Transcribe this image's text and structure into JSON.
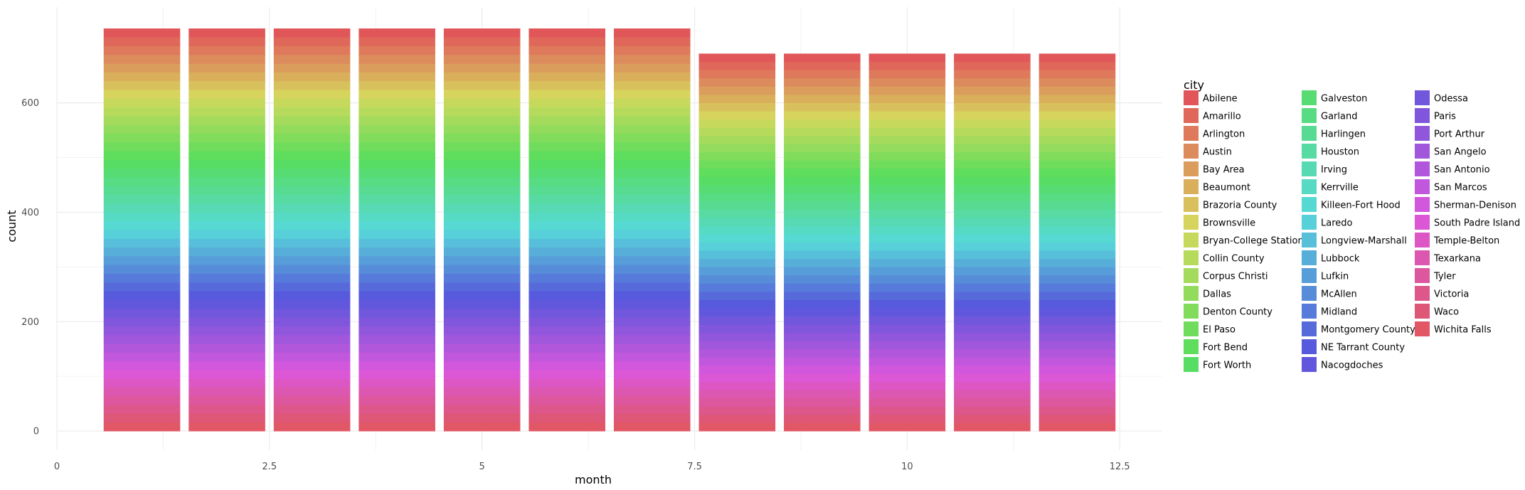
{
  "chart_data": {
    "type": "bar",
    "stacked": true,
    "xlabel": "month",
    "ylabel": "count",
    "xlim": [
      0,
      13
    ],
    "ylim": [
      -35,
      775
    ],
    "x_ticks": [
      0,
      2.5,
      5,
      7.5,
      10,
      12.5
    ],
    "x_tick_labels": [
      "0",
      "2.5",
      "5",
      "7.5",
      "10",
      "12.5"
    ],
    "y_ticks": [
      0,
      200,
      400,
      600
    ],
    "y_tick_labels": [
      "0",
      "200",
      "400",
      "600"
    ],
    "grid": true,
    "legend_title": "city",
    "legend_position": "right",
    "x": [
      1,
      2,
      3,
      4,
      5,
      6,
      7,
      8,
      9,
      10,
      11,
      12
    ],
    "per_city_count_by_month": [
      16,
      16,
      16,
      16,
      16,
      16,
      16,
      15,
      15,
      15,
      15,
      15
    ],
    "totals": [
      736,
      736,
      736,
      736,
      736,
      736,
      736,
      690,
      690,
      690,
      690,
      690
    ],
    "series": [
      {
        "name": "Abilene",
        "color": "#E15759"
      },
      {
        "name": "Amarillo",
        "color": "#E0685A"
      },
      {
        "name": "Arlington",
        "color": "#DE7A5B"
      },
      {
        "name": "Austin",
        "color": "#DC8C5C"
      },
      {
        "name": "Bay Area",
        "color": "#DB9D5C"
      },
      {
        "name": "Beaumont",
        "color": "#D9AF5C"
      },
      {
        "name": "Brazoria County",
        "color": "#D8C15C"
      },
      {
        "name": "Brownsville",
        "color": "#D6D45C"
      },
      {
        "name": "Bryan-College Station",
        "color": "#C7D95C"
      },
      {
        "name": "Collin County",
        "color": "#B6DA5C"
      },
      {
        "name": "Corpus Christi",
        "color": "#A5DB5C"
      },
      {
        "name": "Dallas",
        "color": "#93DB5C"
      },
      {
        "name": "Denton County",
        "color": "#81DC5C"
      },
      {
        "name": "El Paso",
        "color": "#70DC5C"
      },
      {
        "name": "Fort Bend",
        "color": "#5FDD5C"
      },
      {
        "name": "Fort Worth",
        "color": "#57DD63"
      },
      {
        "name": "Galveston",
        "color": "#57DC73"
      },
      {
        "name": "Garland",
        "color": "#57DC83"
      },
      {
        "name": "Harlingen",
        "color": "#57DB93"
      },
      {
        "name": "Houston",
        "color": "#57DBA3"
      },
      {
        "name": "Irving",
        "color": "#57DAB3"
      },
      {
        "name": "Kerrville",
        "color": "#57DAC3"
      },
      {
        "name": "Killeen-Fort Hood",
        "color": "#57D9D3"
      },
      {
        "name": "Laredo",
        "color": "#57D0D9"
      },
      {
        "name": "Longview-Marshall",
        "color": "#57BFD9"
      },
      {
        "name": "Lubbock",
        "color": "#57AED9"
      },
      {
        "name": "Lufkin",
        "color": "#579DD9"
      },
      {
        "name": "McAllen",
        "color": "#578CD9"
      },
      {
        "name": "Midland",
        "color": "#577BDA"
      },
      {
        "name": "Montgomery County",
        "color": "#576ADA"
      },
      {
        "name": "NE Tarrant County",
        "color": "#575ADC"
      },
      {
        "name": "Nacogdoches",
        "color": "#6157DC"
      },
      {
        "name": "Odessa",
        "color": "#7057DC"
      },
      {
        "name": "Paris",
        "color": "#8057DC"
      },
      {
        "name": "Port Arthur",
        "color": "#9057DC"
      },
      {
        "name": "San Angelo",
        "color": "#A057DC"
      },
      {
        "name": "San Antonio",
        "color": "#B157DC"
      },
      {
        "name": "San Marcos",
        "color": "#C157DC"
      },
      {
        "name": "Sherman-Denison",
        "color": "#D157DC"
      },
      {
        "name": "South Padre Island",
        "color": "#DC57D6"
      },
      {
        "name": "Temple-Belton",
        "color": "#DC57C3"
      },
      {
        "name": "Texarkana",
        "color": "#DC57B0"
      },
      {
        "name": "Tyler",
        "color": "#DC579D"
      },
      {
        "name": "Victoria",
        "color": "#DD578A"
      },
      {
        "name": "Waco",
        "color": "#DE5777"
      },
      {
        "name": "Wichita Falls",
        "color": "#E15765"
      }
    ]
  }
}
